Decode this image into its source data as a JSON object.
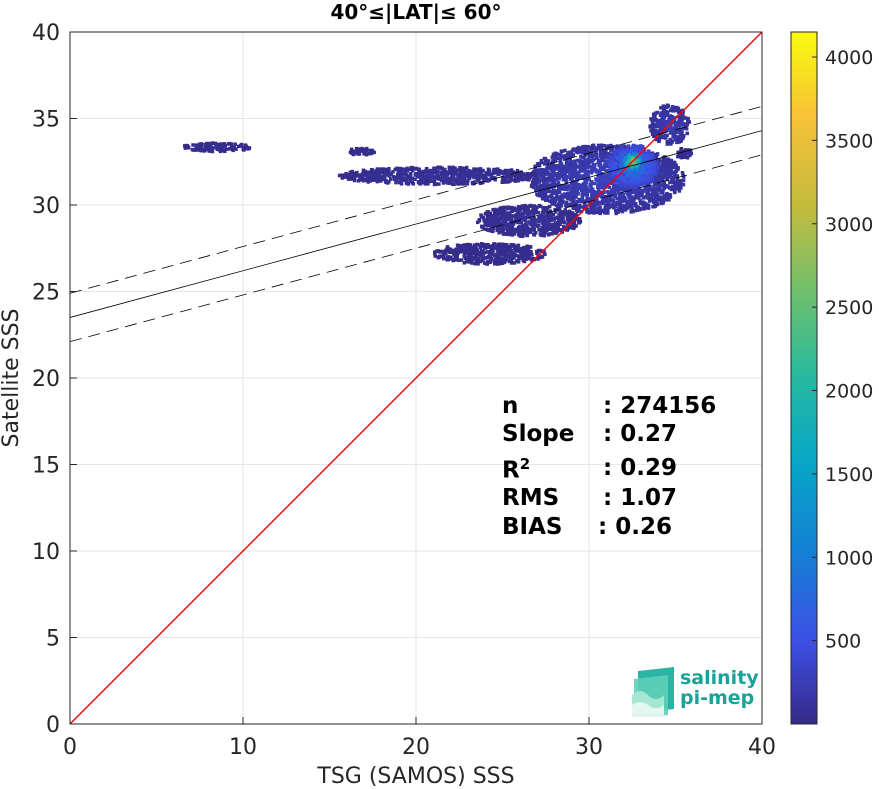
{
  "chart_data": {
    "type": "scatter",
    "subtype": "density-heatmap",
    "title": "40°≤|LAT|≤ 60°",
    "xlabel": "TSG (SAMOS) SSS",
    "ylabel": "Satellite SSS",
    "xlim": [
      0,
      40
    ],
    "ylim": [
      0,
      40
    ],
    "xticks": [
      "0",
      "10",
      "20",
      "30",
      "40"
    ],
    "yticks": [
      "0",
      "5",
      "10",
      "15",
      "20",
      "25",
      "30",
      "35",
      "40"
    ],
    "grid": true,
    "colorbar": {
      "range": [
        0,
        4150
      ],
      "ticks": [
        "500",
        "1000",
        "1500",
        "2000",
        "2500",
        "3000",
        "3500",
        "4000"
      ],
      "colormap": "parula"
    },
    "reference_line": {
      "name": "1:1",
      "x": [
        0,
        40
      ],
      "y": [
        0,
        40
      ],
      "color": "#ff0000"
    },
    "fit_line": {
      "intercept": 23.5,
      "slope": 0.27,
      "color": "#000000"
    },
    "confidence_band": {
      "upper_intercept": 24.9,
      "lower_intercept": 22.1,
      "slope": 0.27
    },
    "density_clusters": [
      {
        "x": [
          26.5,
          35.5
        ],
        "y": [
          29.5,
          33.5
        ],
        "level": 0.06
      },
      {
        "x": [
          31.0,
          34.0
        ],
        "y": [
          31.0,
          33.5
        ],
        "level": 0.2
      },
      {
        "x": [
          32.0,
          33.0
        ],
        "y": [
          32.0,
          33.0
        ],
        "level": 0.6
      },
      {
        "x": [
          33.5,
          35.8
        ],
        "y": [
          33.5,
          35.8
        ],
        "level": 0.05
      },
      {
        "x": [
          15.5,
          27.0
        ],
        "y": [
          31.2,
          32.2
        ],
        "level": 0.02
      },
      {
        "x": [
          23.5,
          29.5
        ],
        "y": [
          28.2,
          30.0
        ],
        "level": 0.02
      },
      {
        "x": [
          21.0,
          27.5
        ],
        "y": [
          26.6,
          27.8
        ],
        "level": 0.01
      },
      {
        "x": [
          16.0,
          17.7
        ],
        "y": [
          32.9,
          33.3
        ],
        "level": 0.01
      },
      {
        "x": [
          6.5,
          10.5
        ],
        "y": [
          33.1,
          33.6
        ],
        "level": 0.01
      },
      {
        "x": [
          35.0,
          36.0
        ],
        "y": [
          32.7,
          33.3
        ],
        "level": 0.01
      }
    ],
    "stats": [
      {
        "label": "n",
        "value": ": 274156"
      },
      {
        "label": "Slope",
        "value": ": 0.27"
      },
      {
        "label": "R",
        "sup": "2",
        "value": ": 0.29"
      },
      {
        "label": "RMS",
        "value": ": 1.07"
      },
      {
        "label": "BIAS",
        "value": ": 0.26"
      }
    ]
  },
  "logo": {
    "line1": "salinity",
    "line2": "pi-mep",
    "color": "#17a29a"
  }
}
